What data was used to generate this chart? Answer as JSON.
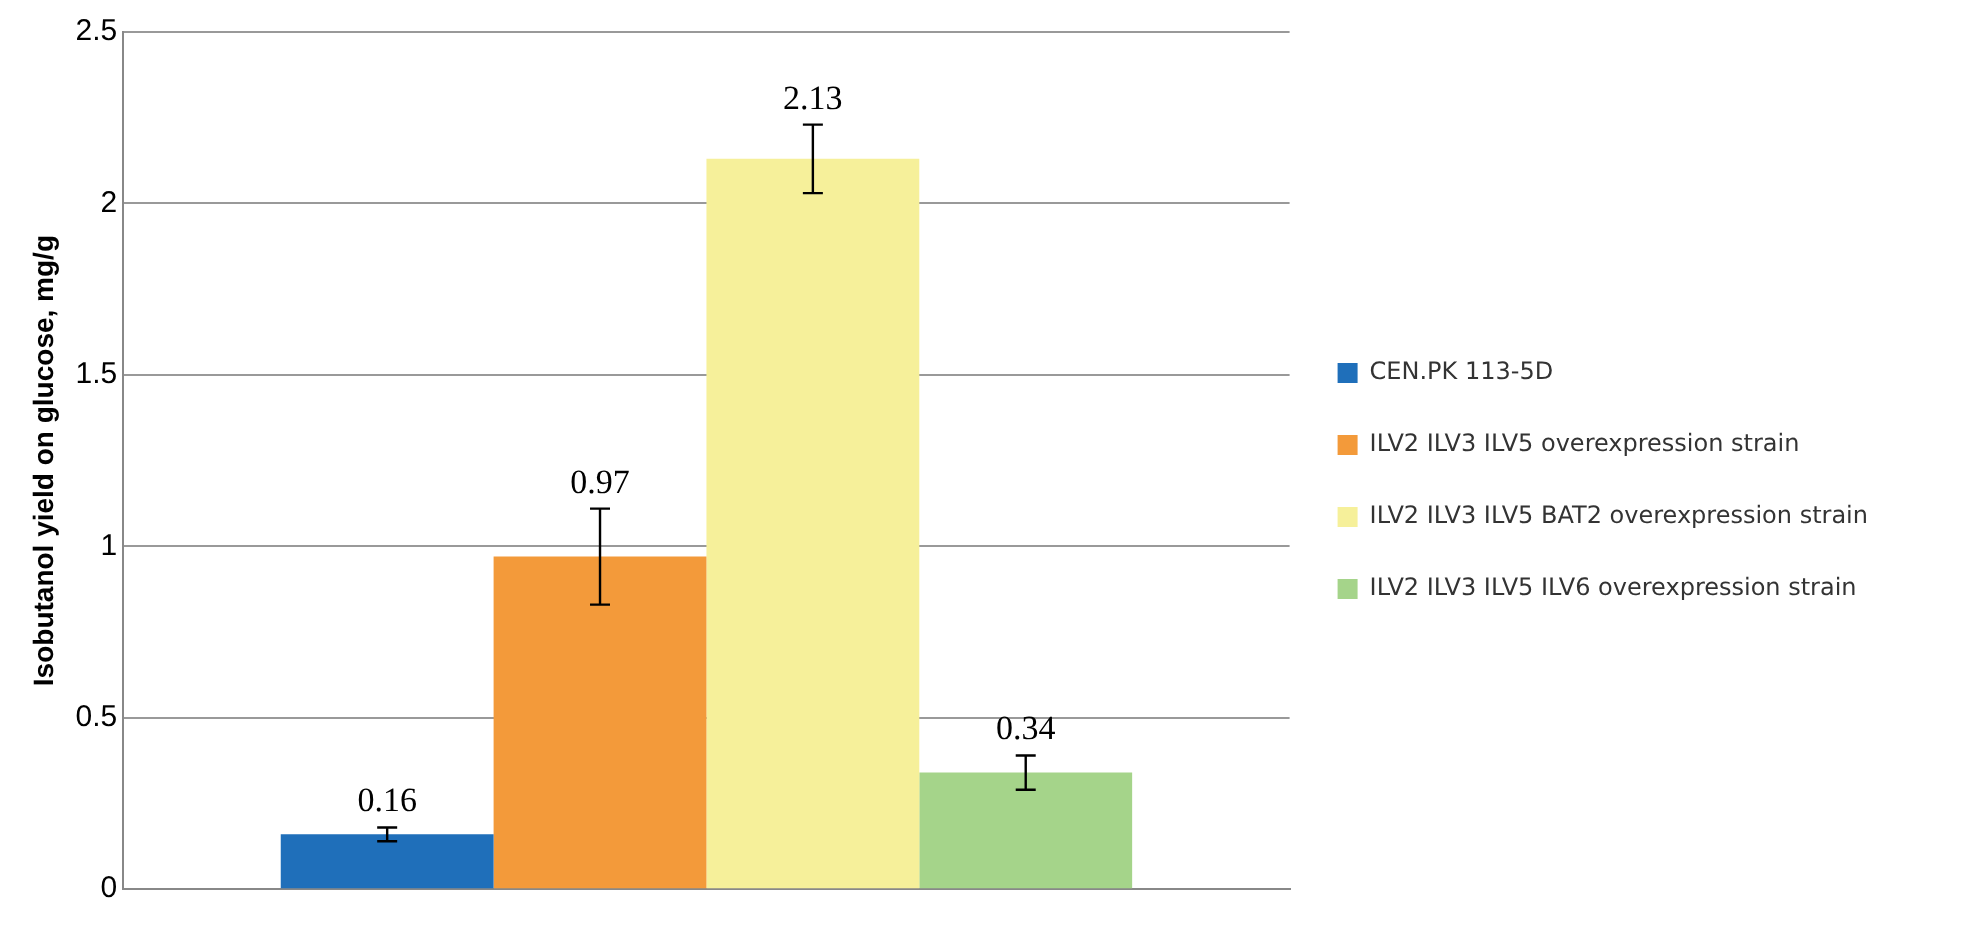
{
  "chart_data": {
    "type": "bar",
    "ylabel": "Isobutanol yield on glucose, mg/g",
    "categories": [
      null
    ],
    "series": [
      {
        "name": "CEN.PK 113-5D",
        "color": "#1f6fba",
        "values": [
          0.16
        ],
        "errors": [
          0.02
        ]
      },
      {
        "name": "ILV2 ILV3 ILV5 overexpression strain",
        "color": "#f39a3a",
        "values": [
          0.97
        ],
        "errors": [
          0.14
        ]
      },
      {
        "name": "ILV2 ILV3 ILV5 BAT2 overexpression strain",
        "color": "#f6f09a",
        "values": [
          2.13
        ],
        "errors": [
          0.1
        ]
      },
      {
        "name": "ILV2 ILV3 ILV5 ILV6 overexpression strain",
        "color": "#a5d48a",
        "values": [
          0.34
        ],
        "errors": [
          0.05
        ]
      }
    ],
    "ylim": [
      0,
      2.5
    ],
    "yticks": [
      0,
      0.5,
      1,
      1.5,
      2,
      2.5
    ],
    "grid": "y",
    "legend": "right",
    "data_labels": true
  }
}
